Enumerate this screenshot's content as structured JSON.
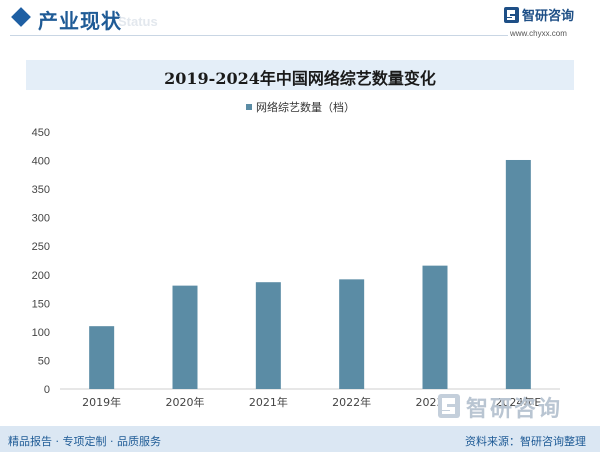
{
  "header": {
    "title": "产业现状",
    "watermark": "Status"
  },
  "logo": {
    "name": "智研咨询",
    "url": "www.chyxx.com"
  },
  "chart_data": {
    "type": "bar",
    "title": "2019-2024年中国网络综艺数量变化",
    "categories": [
      "2019年",
      "2020年",
      "2021年",
      "2022年",
      "2023年",
      "2024年E"
    ],
    "series": [
      {
        "name": "网络综艺数量（档）",
        "values": [
          110,
          181,
          187,
          192,
          216,
          401
        ]
      }
    ],
    "yticks": [
      "0",
      "50",
      "100",
      "150",
      "200",
      "250",
      "300",
      "350",
      "400",
      "450"
    ],
    "ylim": [
      0,
      450
    ],
    "grid": false,
    "legend_position": "top",
    "bar_color": "#5b8ca5"
  },
  "corner_mark": {
    "name": "智研咨询"
  },
  "footer": {
    "left": "精品报告 · 专项定制 · 品质服务",
    "right": "资料来源：智研咨询整理"
  }
}
